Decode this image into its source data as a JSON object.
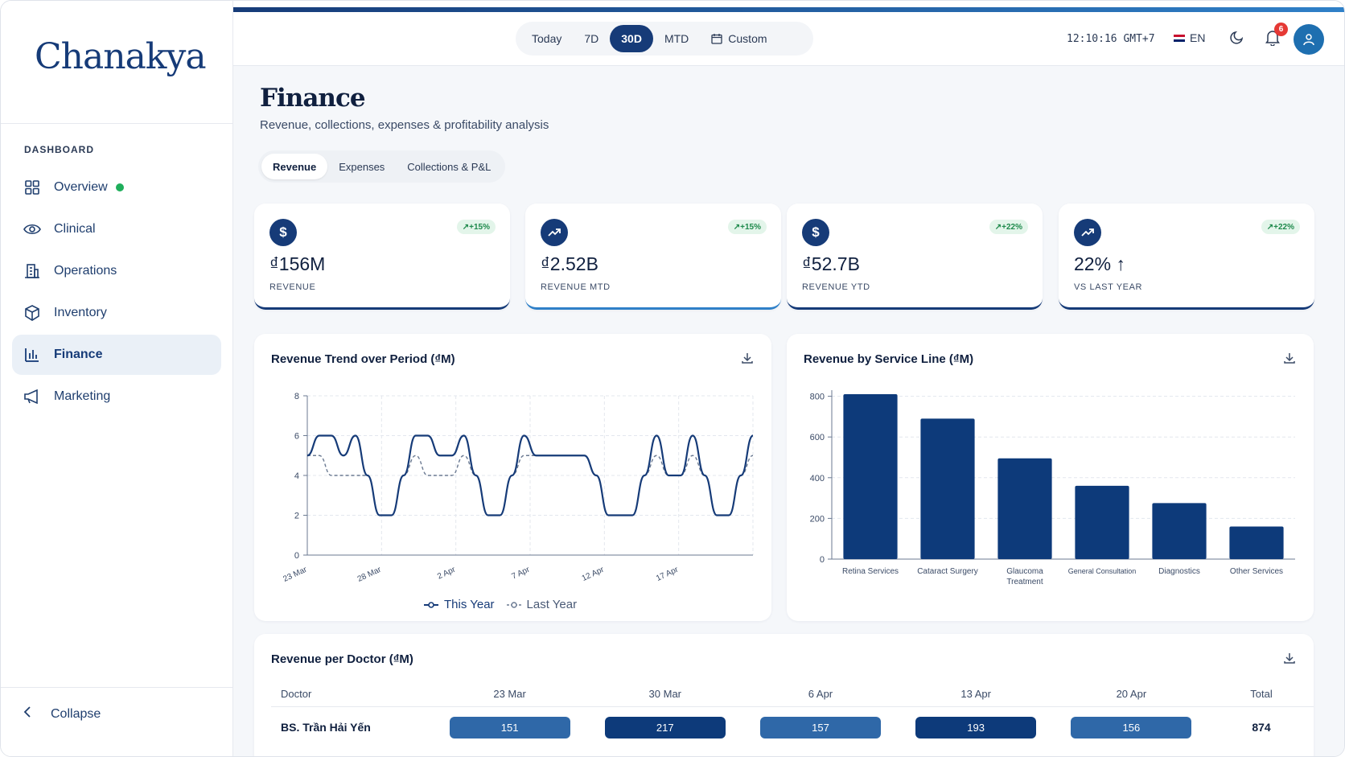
{
  "app": {
    "logo": "Chanakya"
  },
  "sidebar": {
    "section": "DASHBOARD",
    "items": [
      {
        "label": "Overview",
        "icon": "grid-icon",
        "status_dot": true
      },
      {
        "label": "Clinical",
        "icon": "eye-icon"
      },
      {
        "label": "Operations",
        "icon": "building-icon"
      },
      {
        "label": "Inventory",
        "icon": "box-icon"
      },
      {
        "label": "Finance",
        "icon": "bar-chart-icon",
        "active": true
      },
      {
        "label": "Marketing",
        "icon": "megaphone-icon"
      }
    ],
    "collapse_label": "Collapse"
  },
  "topbar": {
    "ranges": [
      "Today",
      "7D",
      "30D",
      "MTD",
      "Custom"
    ],
    "selected_range": "30D",
    "clock": "12:10:16 GMT+7",
    "language": "EN",
    "notifications": "6"
  },
  "page": {
    "title": "Finance",
    "subtitle": "Revenue, collections, expenses & profitability analysis",
    "tabs": [
      "Revenue",
      "Expenses",
      "Collections & P&L"
    ],
    "selected_tab": "Revenue"
  },
  "kpis": [
    {
      "value": "₫156M",
      "label": "REVENUE",
      "trend": "+15%",
      "icon": "dollar-icon"
    },
    {
      "value": "₫2.52B",
      "label": "REVENUE MTD",
      "trend": "+15%",
      "icon": "trending-up-icon"
    },
    {
      "value": "₫52.7B",
      "label": "REVENUE YTD",
      "trend": "+22%",
      "icon": "dollar-icon"
    },
    {
      "value": "22% ↑",
      "label": "VS LAST YEAR",
      "trend": "+22%",
      "icon": "trending-up-icon"
    }
  ],
  "colors": {
    "primary": "#163b78",
    "accent": "#2f80c8",
    "positive": "#1f8a4c"
  },
  "trend_card": {
    "title": "Revenue Trend over Period (₫M)"
  },
  "service_card": {
    "title": "Revenue by Service Line (₫M)"
  },
  "doctor_card": {
    "title": "Revenue per Doctor (₫M)",
    "columns": [
      "Doctor",
      "23 Mar",
      "30 Mar",
      "6 Apr",
      "13 Apr",
      "20 Apr",
      "Total"
    ],
    "rows": [
      {
        "doctor": "BS. Trần Hải Yến",
        "values": [
          "151",
          "217",
          "157",
          "193",
          "156"
        ],
        "total": "874"
      }
    ]
  },
  "chart_data": [
    {
      "type": "line",
      "title": "Revenue Trend over Period (₫M)",
      "x_ticks": [
        "23 Mar",
        "28 Mar",
        "2 Apr",
        "7 Apr",
        "12 Apr",
        "17 Apr"
      ],
      "y_ticks": [
        "0",
        "2",
        "4",
        "6",
        "8"
      ],
      "ylim": [
        0,
        8
      ],
      "legend": "bottom",
      "grid": true,
      "series": [
        {
          "name": "This Year",
          "values": [
            5,
            6,
            6,
            5,
            6,
            4,
            2,
            2,
            4,
            6,
            6,
            5,
            5,
            6,
            4,
            2,
            2,
            4,
            6,
            5,
            5,
            5,
            5,
            5,
            4,
            2,
            2,
            2,
            4,
            6,
            4,
            4,
            6,
            4,
            2,
            2,
            4,
            6
          ]
        },
        {
          "name": "Last Year",
          "values": [
            5,
            5,
            4,
            4,
            4,
            4,
            2,
            2,
            4,
            5,
            4,
            4,
            4,
            5,
            4,
            2,
            2,
            4,
            5,
            5,
            5,
            5,
            5,
            5,
            4,
            2,
            2,
            2,
            4,
            5,
            4,
            4,
            5,
            4,
            2,
            2,
            4,
            5
          ]
        }
      ]
    },
    {
      "type": "bar",
      "title": "Revenue by Service Line (₫M)",
      "categories": [
        "Retina Services",
        "Cataract Surgery",
        "Glaucoma Treatment",
        "General Consultation",
        "Diagnostics",
        "Other Services"
      ],
      "values": [
        810,
        690,
        495,
        360,
        275,
        160
      ],
      "y_ticks": [
        "0",
        "200",
        "400",
        "600",
        "800"
      ],
      "ylim": [
        0,
        830
      ],
      "grid": true
    }
  ]
}
